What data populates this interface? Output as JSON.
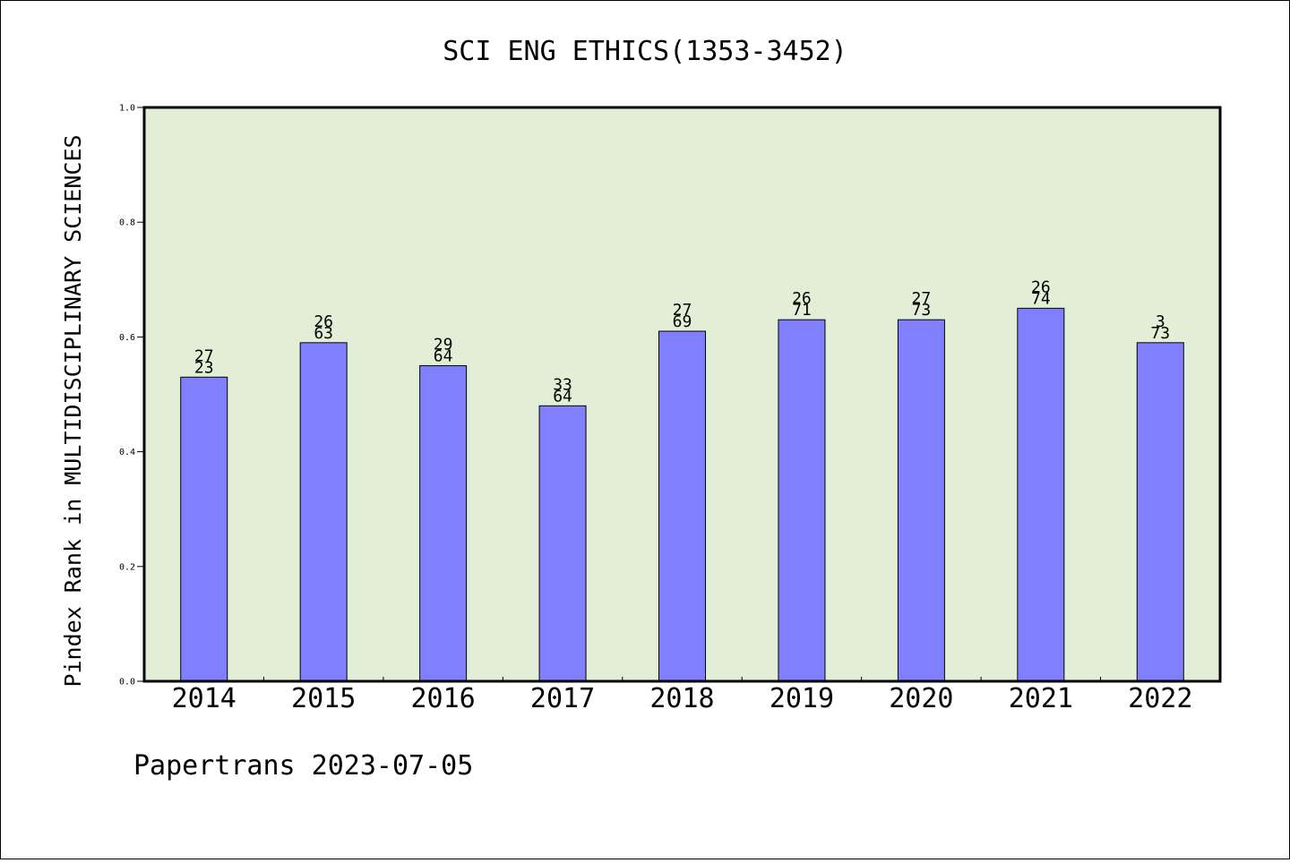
{
  "chart_data": {
    "type": "bar",
    "title": "SCI ENG ETHICS(1353-3452)",
    "xlabel": "",
    "ylabel": "Pindex Rank in MULTIDISCIPLINARY SCIENCES",
    "ylim": [
      0,
      1.0
    ],
    "yticks": [
      "0.0",
      "0.2",
      "0.4",
      "0.6",
      "0.8",
      "1.0"
    ],
    "categories": [
      "2014",
      "2015",
      "2016",
      "2017",
      "2018",
      "2019",
      "2020",
      "2021",
      "2022"
    ],
    "values": [
      0.53,
      0.59,
      0.55,
      0.48,
      0.61,
      0.63,
      0.63,
      0.65,
      0.59
    ],
    "bar_labels": [
      [
        "27",
        "23"
      ],
      [
        "26",
        "63"
      ],
      [
        "29",
        "64"
      ],
      [
        "33",
        "64"
      ],
      [
        "27",
        "69"
      ],
      [
        "26",
        "71"
      ],
      [
        "27",
        "73"
      ],
      [
        "26",
        "74"
      ],
      [
        "3",
        "73"
      ]
    ],
    "grid": false,
    "legend": "none",
    "colors": {
      "bar": "#8080ff",
      "plot_background": "#e2efd6"
    }
  },
  "footer": "Papertrans 2023-07-05"
}
